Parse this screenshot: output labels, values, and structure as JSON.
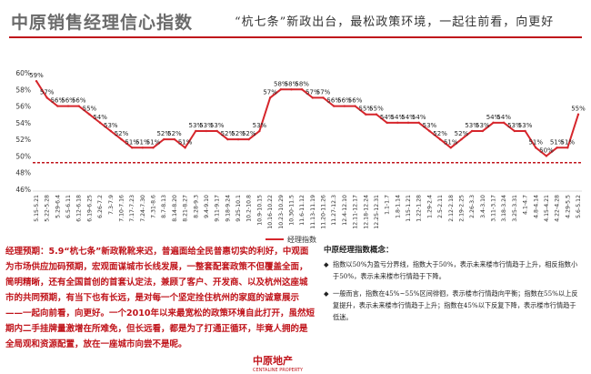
{
  "header": {
    "title": "中原销售经理信心指数",
    "slogan": "“杭七条”新政出台，最松政策环境，一起往前看，向更好"
  },
  "chart_data": {
    "type": "line",
    "x": [
      "5.15-5.21",
      "5.22-5.28",
      "5.29-6.4",
      "6.5-6.11",
      "6.12-6.18",
      "6.19-6.25",
      "6.26-7.2",
      "7.3-7.9",
      "7.10-7.16",
      "7.17-7.23",
      "7.24-7.30",
      "7.31-8.6",
      "8.7-8.13",
      "8.14-8.20",
      "8.21-8.27",
      "8.28-9.3",
      "9.4-9.10",
      "9.11-9.17",
      "9.18-9.24",
      "9.25-10.1",
      "10.2-10.8",
      "10.9-10.15",
      "10.16-10.22",
      "10.23-10.29",
      "10.30-11.5",
      "11.6-11.12",
      "11.13-11.19",
      "11.20-11.26",
      "11.27-12.3",
      "12.4-12.10",
      "12.11-12.17",
      "12.18-12.24",
      "12.25-12.31",
      "1.1-1.7",
      "1.8-1.14",
      "1.15-1.21",
      "1.22-1.28",
      "1.29-2.4",
      "2.5-2.11",
      "2.12-2.18",
      "2.19-2.25",
      "2.26-3.3",
      "3.4-3.10",
      "3.11-3.17",
      "3.18-3.24",
      "3.25-3.31",
      "4.1-4.7",
      "4.8-4.14",
      "4.15-4.21",
      "4.22-4.28",
      "4.29-5.5",
      "5.6-5.12"
    ],
    "x_tick_labels": [
      "5.15-5.21",
      "5.22-5.28",
      "5.29-6.4",
      "6.5-6.11",
      "6.12-6.18",
      "6.19-6.25",
      "6.26-7.2",
      "7.3-7.9",
      "7.10-7.16",
      "7.17-7.23",
      "7.24-7.30",
      "7.31-8.6",
      "8.7-8.13",
      "8.14-8.20",
      "8.21-8.27",
      "8.28-9.3",
      "9.4-9.10",
      "9.11-9.17",
      "9.18-9.24",
      "9.25-10.1",
      "10.2-10.8",
      "10.9-10.15",
      "10.16-10.22",
      "10.23-10.29",
      "10.30-11.5",
      "11.6-11.12",
      "11.13-11.19",
      "11.20-11.26",
      "11.27-12.3",
      "12.4-12.10",
      "12.11-12.17",
      "12.18-12.24",
      "12.25-12.31",
      "1.1-1.7",
      "1.8-1.14",
      "1.15-1.21",
      "1.22-1.28",
      "1.29-2.4",
      "2.5-2.11",
      "2.12-2.18",
      "2.19-2.25",
      "2.26-3.3",
      "3.4-3.10",
      "3.11-3.17",
      "3.18-3.24",
      "3.25-3.31",
      "4.1-4.7",
      "4.8-4.14",
      "4.15-4.21",
      "4.22-4.28",
      "4.29-5.5",
      "5.6-5.12"
    ],
    "series": [
      {
        "name": "经理指数",
        "values": [
          59,
          57,
          56,
          56,
          56,
          55,
          54,
          53,
          52,
          51,
          51,
          51,
          52,
          52,
          51,
          53,
          53,
          53,
          52,
          52,
          52,
          53,
          57,
          58,
          58,
          58,
          57,
          57,
          56,
          56,
          56,
          55,
          55,
          54,
          54,
          54,
          54,
          53,
          52,
          51,
          52,
          53,
          53,
          54,
          54,
          53,
          53,
          51,
          50,
          51,
          51,
          55
        ],
        "labels": [
          "59%",
          "57%",
          "56%",
          "56%",
          "56%",
          "55%",
          "54%",
          "53%",
          "52%",
          "51%",
          "51%",
          "51%",
          "52%",
          "52%",
          "51%",
          "53%",
          "53%",
          "53%",
          "52%",
          "52%",
          "52%",
          "53%",
          "57%",
          "58%",
          "58%",
          "58%",
          "57%",
          "57%",
          "56%",
          "56%",
          "56%",
          "55%",
          "55%",
          "54%",
          "54%",
          "54%",
          "54%",
          "53%",
          "52%",
          "51%",
          "52%",
          "53%",
          "53%",
          "54%",
          "54%",
          "53%",
          "53%",
          "51%",
          "50%",
          "51%",
          "51%",
          "55%"
        ],
        "color": "#d6262c"
      }
    ],
    "y_ticks": [
      "60%",
      "58%",
      "56%",
      "54%",
      "52%",
      "50%",
      "48%",
      "46%"
    ],
    "y_tick_values": [
      60,
      58,
      56,
      54,
      52,
      50,
      48,
      46
    ],
    "ylim": [
      46,
      60
    ],
    "reference_line": {
      "value": 49.2,
      "color": "#c0141b",
      "style": "dashed"
    },
    "grid": false,
    "legend_position": "bottom"
  },
  "explanation": {
    "text": "经理预期：5.9“杭七条”新政靴靴来迟，普遍面给全民普惠切实的利好，中观面为市场供应加码预期，宏观面谋城市长线发展，一整套配套政策不但覆盖全面，简明精晰，还有全国首创的首套认定法，兼顾了客户、开发商、以及杭州这座城市的共同预期，有当下也有长远，是对每一个坚定拴住杭州的家庭的诚意展示——一起向前看，向更好。一个2010年以来最宽松的政策环境自此打开，虽然短期内二手挂牌量激增在所难免，但长远看，都是为了打通正循环，毕竟人拥的是全局观和资源配置，放在一座城市向尝不是呢。"
  },
  "logo": {
    "text": "中原地产",
    "sub": "CENTALINE PROPERTY"
  },
  "definition": {
    "title": "中原经理指数概念：",
    "items": [
      "指数以50%为盈亏分界线，指数大于50%，表示未来楼市行情趋于上升，相反指数小于50%，表示未来楼市行情趋于下降。",
      "一般而言，指数在45%~55%区间徘徊，表示楼市行情趋向平衡；指数在55%以上反复提升，表示未来楼市行情趋于上升；指数在45%以下反复下降，表示楼市行情趋于低迷。"
    ]
  }
}
